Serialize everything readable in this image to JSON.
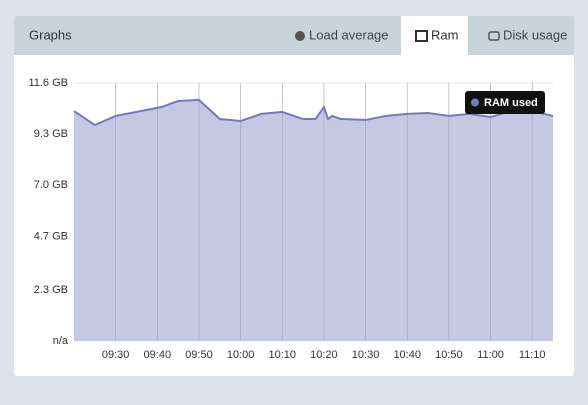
{
  "header": {
    "title": "Graphs",
    "tabs": [
      "Load average",
      "Ram",
      "Disk usage"
    ],
    "active_tab": 1
  },
  "chart_data": {
    "type": "area",
    "x": [
      "09:20",
      "09:25",
      "09:30",
      "09:41",
      "09:45",
      "09:50",
      "09:55",
      "10:00",
      "10:05",
      "10:10",
      "10:15",
      "10:18",
      "10:20",
      "10:21",
      "10:22",
      "10:24",
      "10:30",
      "10:35",
      "10:40",
      "10:45",
      "10:50",
      "10:55",
      "11:00",
      "11:05",
      "11:10",
      "11:15"
    ],
    "series": [
      {
        "name": "RAM used",
        "color": "#7479b8",
        "values": [
          10.34,
          9.71,
          10.12,
          10.52,
          10.79,
          10.84,
          9.98,
          9.89,
          10.21,
          10.3,
          9.98,
          9.98,
          10.52,
          9.98,
          10.12,
          9.98,
          9.94,
          10.12,
          10.21,
          10.25,
          10.12,
          10.21,
          10.07,
          10.34,
          10.34,
          10.12
        ]
      }
    ],
    "xlim": [
      "09:20",
      "11:15"
    ],
    "xticks": [
      "09:30",
      "09:40",
      "09:50",
      "10:00",
      "10:10",
      "10:20",
      "10:30",
      "10:40",
      "10:50",
      "11:00",
      "11:10"
    ],
    "ylim": [
      0,
      11.6
    ],
    "yticks": [
      {
        "value": 0,
        "label": "n/a"
      },
      {
        "value": 2.3,
        "label": "2.3 GB"
      },
      {
        "value": 4.7,
        "label": "4.7 GB"
      },
      {
        "value": 7.0,
        "label": "7.0 GB"
      },
      {
        "value": 9.3,
        "label": "9.3 GB"
      },
      {
        "value": 11.6,
        "label": "11.6 GB"
      }
    ],
    "grid": true,
    "legend": "top-right"
  }
}
